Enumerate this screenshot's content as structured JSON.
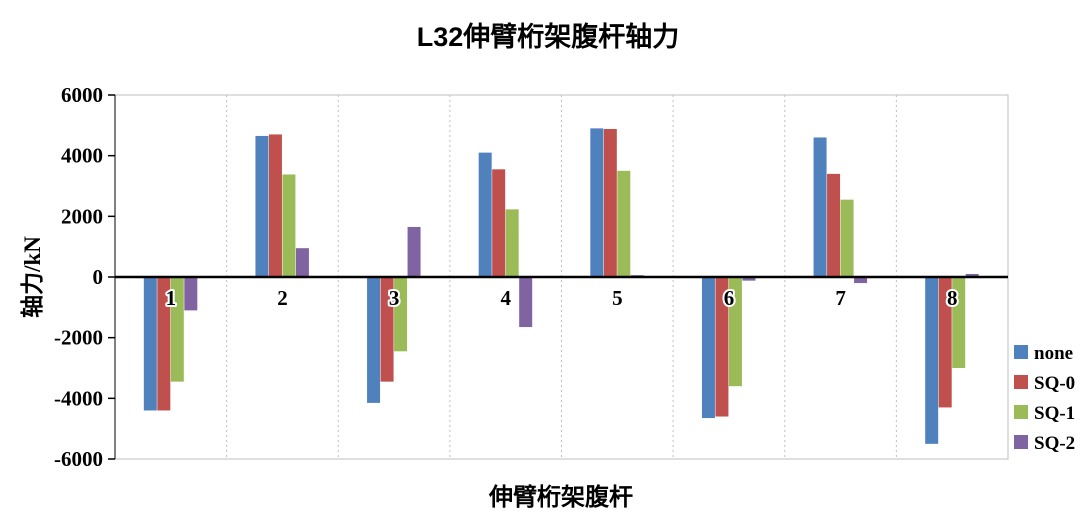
{
  "chart_data": {
    "type": "bar",
    "title": "L32伸臂桁架腹杆轴力",
    "xlabel": "伸臂桁架腹杆",
    "ylabel": "轴力/kN",
    "ylim": [
      -6000,
      6000
    ],
    "yticks": [
      6000,
      4000,
      2000,
      0,
      -2000,
      -4000,
      -6000
    ],
    "grid": "vertical-dotted",
    "legend_position": "right",
    "categories": [
      "1",
      "2",
      "3",
      "4",
      "5",
      "6",
      "7",
      "8"
    ],
    "series": [
      {
        "name": "none",
        "color": "#4F81BD",
        "values": [
          -4400,
          4650,
          -4150,
          4100,
          4900,
          -4650,
          4600,
          -5500
        ]
      },
      {
        "name": "SQ-0",
        "color": "#C0504D",
        "values": [
          -4400,
          4700,
          -3450,
          3550,
          4880,
          -4600,
          3400,
          -4300
        ]
      },
      {
        "name": "SQ-1",
        "color": "#9BBB59",
        "values": [
          -3450,
          3380,
          -2450,
          2230,
          3500,
          -3600,
          2550,
          -3000
        ]
      },
      {
        "name": "SQ-2",
        "color": "#8064A2",
        "values": [
          -1100,
          950,
          1650,
          -1650,
          60,
          -120,
          -200,
          100
        ]
      }
    ]
  }
}
